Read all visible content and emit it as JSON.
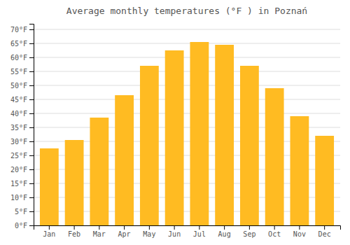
{
  "chart_data": {
    "type": "bar",
    "title": "Average monthly temperatures (°F ) in Poznań",
    "categories": [
      "Jan",
      "Feb",
      "Mar",
      "Apr",
      "May",
      "Jun",
      "Jul",
      "Aug",
      "Sep",
      "Oct",
      "Nov",
      "Dec"
    ],
    "values": [
      27.5,
      30.5,
      38.5,
      46.5,
      57.0,
      62.5,
      65.5,
      64.5,
      57.0,
      49.0,
      39.0,
      32.0
    ],
    "color": "#FFBB22",
    "ylim": [
      0,
      72
    ],
    "yticks": [
      {
        "value": 0,
        "label": "0°F"
      },
      {
        "value": 5,
        "label": "5°F"
      },
      {
        "value": 10,
        "label": "10°F"
      },
      {
        "value": 15,
        "label": "15°F"
      },
      {
        "value": 20,
        "label": "20°F"
      },
      {
        "value": 25,
        "label": "25°F"
      },
      {
        "value": 30,
        "label": "30°F"
      },
      {
        "value": 35,
        "label": "35°F"
      },
      {
        "value": 40,
        "label": "40°F"
      },
      {
        "value": 45,
        "label": "45°F"
      },
      {
        "value": 50,
        "label": "50°F"
      },
      {
        "value": 55,
        "label": "55°F"
      },
      {
        "value": 60,
        "label": "60°F"
      },
      {
        "value": 65,
        "label": "65°F"
      },
      {
        "value": 70,
        "label": "70°F"
      }
    ],
    "grid": true
  }
}
